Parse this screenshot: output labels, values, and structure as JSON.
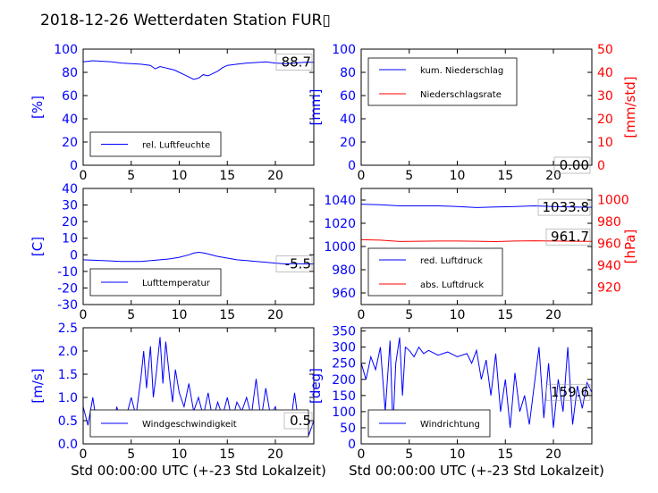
{
  "figure": {
    "title": "2018-12-26 Wetterdaten Station FUR▯"
  },
  "colors": {
    "left_axis": "#0000ff",
    "right_axis": "#ff0000",
    "series_blue": "#0000ff",
    "series_red": "#ff0000"
  },
  "chart_data": [
    {
      "id": "humidity",
      "type": "line",
      "ylabel": "[%]",
      "xlim": [
        0,
        24
      ],
      "ylim": [
        0,
        100
      ],
      "xticks": [
        0,
        5,
        10,
        15,
        20
      ],
      "yticks": [
        0,
        20,
        40,
        60,
        80,
        100
      ],
      "legend": {
        "placement": "lower-left",
        "entries": [
          "rel. Luftfeuchte"
        ]
      },
      "annotation": "88.7",
      "series": [
        {
          "name": "rel. Luftfeuchte",
          "color": "#0000ff",
          "x": [
            0,
            1,
            2,
            3,
            4,
            5,
            6,
            7,
            7.5,
            8,
            8.5,
            9,
            9.5,
            10,
            10.5,
            11,
            11.5,
            12,
            12.5,
            13,
            13.5,
            14,
            14.5,
            15,
            16,
            17,
            18,
            19,
            20,
            21,
            22,
            23,
            24
          ],
          "y": [
            89,
            90,
            89.5,
            89,
            88,
            87.5,
            87,
            86,
            83,
            85,
            84,
            83,
            82,
            80,
            78,
            76,
            74,
            75,
            78,
            77,
            79,
            81,
            84,
            86,
            87,
            88,
            88.5,
            89,
            88,
            87.5,
            88,
            88.7,
            88.7
          ]
        }
      ]
    },
    {
      "id": "precipitation",
      "type": "line",
      "ylabel": "[mm]",
      "ylabel_right": "[mm/std]",
      "xlim": [
        0,
        24
      ],
      "ylim": [
        0,
        100
      ],
      "ylim_right": [
        0,
        50
      ],
      "xticks": [
        0,
        5,
        10,
        15,
        20
      ],
      "yticks": [
        0,
        20,
        40,
        60,
        80,
        100
      ],
      "yticks_right": [
        0,
        10,
        20,
        30,
        40,
        50
      ],
      "legend": {
        "placement": "top-left",
        "entries": [
          "kum. Niederschlag",
          "Niederschlagsrate"
        ]
      },
      "annotation": "0.00",
      "series": [
        {
          "name": "kum. Niederschlag",
          "color": "#0000ff",
          "x": [
            0,
            24
          ],
          "y": [
            0,
            0
          ]
        },
        {
          "name": "Niederschlagsrate",
          "color": "#ff0000",
          "x": [
            0,
            24
          ],
          "y": [
            0,
            0
          ]
        }
      ]
    },
    {
      "id": "temperature",
      "type": "line",
      "ylabel": "[C]",
      "xlim": [
        0,
        24
      ],
      "ylim": [
        -30,
        40
      ],
      "xticks": [
        0,
        5,
        10,
        15,
        20
      ],
      "yticks": [
        -30,
        -20,
        -10,
        0,
        10,
        20,
        30,
        40
      ],
      "legend": {
        "placement": "lower-left",
        "entries": [
          "Lufttemperatur"
        ]
      },
      "annotation": "-5.5",
      "series": [
        {
          "name": "Lufttemperatur",
          "color": "#0000ff",
          "x": [
            0,
            2,
            4,
            6,
            8,
            9,
            10,
            11,
            11.5,
            12,
            12.5,
            13,
            14,
            15,
            16,
            17,
            18,
            19,
            20,
            21,
            22,
            23,
            24
          ],
          "y": [
            -3,
            -3.5,
            -4,
            -4,
            -3,
            -2.5,
            -1.5,
            0,
            1,
            1.5,
            1.2,
            0.5,
            -1,
            -2,
            -3,
            -3.5,
            -4,
            -4.5,
            -5,
            -5.5,
            -5.3,
            -5.5,
            -5.5
          ]
        }
      ]
    },
    {
      "id": "pressure",
      "type": "line",
      "ylim": [
        950,
        1050
      ],
      "ylim_right": [
        904,
        1010
      ],
      "ylabel_right": "[hPa]",
      "xlim": [
        0,
        24
      ],
      "xticks": [
        0,
        5,
        10,
        15,
        20
      ],
      "yticks": [
        960,
        980,
        1000,
        1020,
        1040
      ],
      "yticks_right": [
        920,
        940,
        960,
        980,
        1000
      ],
      "legend": {
        "placement": "lower-left",
        "entries": [
          "red. Luftdruck",
          "abs. Luftdruck"
        ]
      },
      "annotations": [
        "1033.8",
        "961.7"
      ],
      "series": [
        {
          "name": "red. Luftdruck",
          "color": "#0000ff",
          "x": [
            0,
            2,
            4,
            6,
            8,
            10,
            12,
            14,
            16,
            18,
            20,
            22,
            24
          ],
          "y": [
            1036.5,
            1036,
            1035,
            1035,
            1035,
            1034.5,
            1033.5,
            1034,
            1034.5,
            1035,
            1034.5,
            1034,
            1033.8
          ]
        },
        {
          "name": "abs. Luftdruck",
          "color": "#ff0000",
          "x": [
            0,
            2,
            4,
            6,
            8,
            10,
            12,
            14,
            16,
            18,
            20,
            22,
            24
          ],
          "y": [
            963.2,
            962.8,
            961.6,
            961.8,
            962,
            962,
            961.8,
            961.5,
            962,
            962.2,
            962,
            961.8,
            961.7
          ]
        }
      ]
    },
    {
      "id": "windspeed",
      "type": "line",
      "ylabel": "[m/s]",
      "xlim": [
        0,
        24
      ],
      "ylim": [
        0,
        2.5
      ],
      "xlabel": "Std 00:00:00 UTC (+-23 Std Lokalzeit)",
      "xticks": [
        0,
        5,
        10,
        15,
        20
      ],
      "yticks": [
        0.0,
        0.5,
        1.0,
        1.5,
        2.0,
        2.5
      ],
      "legend": {
        "placement": "lower-left",
        "entries": [
          "Windgeschwindigkeit"
        ]
      },
      "annotation": "0.5",
      "series": [
        {
          "name": "Windgeschwindigkeit",
          "color": "#0000ff",
          "x": [
            0,
            0.5,
            1,
            1.5,
            2,
            2.5,
            3,
            3.5,
            4,
            4.5,
            5,
            5.5,
            6,
            6.3,
            6.6,
            7,
            7.3,
            7.6,
            8,
            8.3,
            8.6,
            9,
            9.3,
            9.6,
            10,
            10.5,
            11,
            11.5,
            12,
            12.5,
            13,
            13.5,
            14,
            14.5,
            15,
            15.5,
            16,
            16.5,
            17,
            17.5,
            18,
            18.5,
            19,
            19.5,
            20,
            20.5,
            21,
            21.5,
            22,
            22.5,
            23,
            23.5,
            24
          ],
          "y": [
            0.8,
            0.4,
            1.0,
            0.3,
            0.6,
            0.7,
            0.2,
            0.8,
            0.4,
            0.6,
            1.0,
            0.6,
            1.4,
            2.0,
            1.2,
            2.1,
            1.0,
            1.5,
            2.3,
            1.3,
            2.2,
            1.4,
            0.9,
            1.6,
            1.1,
            0.8,
            1.3,
            0.7,
            1.0,
            0.6,
            1.1,
            0.5,
            0.9,
            0.6,
            1.0,
            0.5,
            0.9,
            0.7,
            1.0,
            0.6,
            1.4,
            0.5,
            1.2,
            0.6,
            0.8,
            0.4,
            0.7,
            0.3,
            1.1,
            0.3,
            0.6,
            0.2,
            0.5
          ]
        }
      ]
    },
    {
      "id": "winddirection",
      "type": "line",
      "ylabel": "[deg]",
      "xlim": [
        0,
        24
      ],
      "ylim": [
        0,
        360
      ],
      "xlabel": "Std 00:00:00 UTC (+-23 Std Lokalzeit)",
      "xticks": [
        0,
        5,
        10,
        15,
        20
      ],
      "yticks": [
        0,
        50,
        100,
        150,
        200,
        250,
        300,
        350
      ],
      "legend": {
        "placement": "lower-left",
        "entries": [
          "Windrichtung"
        ]
      },
      "annotation": "159.6",
      "series": [
        {
          "name": "Windrichtung",
          "color": "#0000ff",
          "x": [
            0,
            0.5,
            1,
            1.5,
            2,
            2.5,
            3,
            3.3,
            3.6,
            4,
            4.3,
            4.6,
            5,
            5.5,
            6,
            6.5,
            7,
            8,
            9,
            10,
            11,
            11.5,
            12,
            12.5,
            13,
            13.5,
            14,
            14.5,
            15,
            15.5,
            16,
            16.5,
            17,
            17.5,
            18,
            18.5,
            19,
            19.5,
            20,
            20.5,
            21,
            21.5,
            22,
            22.5,
            23,
            23.5,
            24
          ],
          "y": [
            250,
            200,
            270,
            230,
            300,
            100,
            320,
            50,
            250,
            330,
            150,
            300,
            290,
            270,
            300,
            280,
            290,
            275,
            285,
            270,
            280,
            250,
            290,
            200,
            260,
            150,
            280,
            100,
            200,
            50,
            220,
            100,
            150,
            60,
            180,
            300,
            80,
            250,
            50,
            200,
            100,
            300,
            60,
            180,
            110,
            190,
            160
          ]
        }
      ]
    }
  ]
}
